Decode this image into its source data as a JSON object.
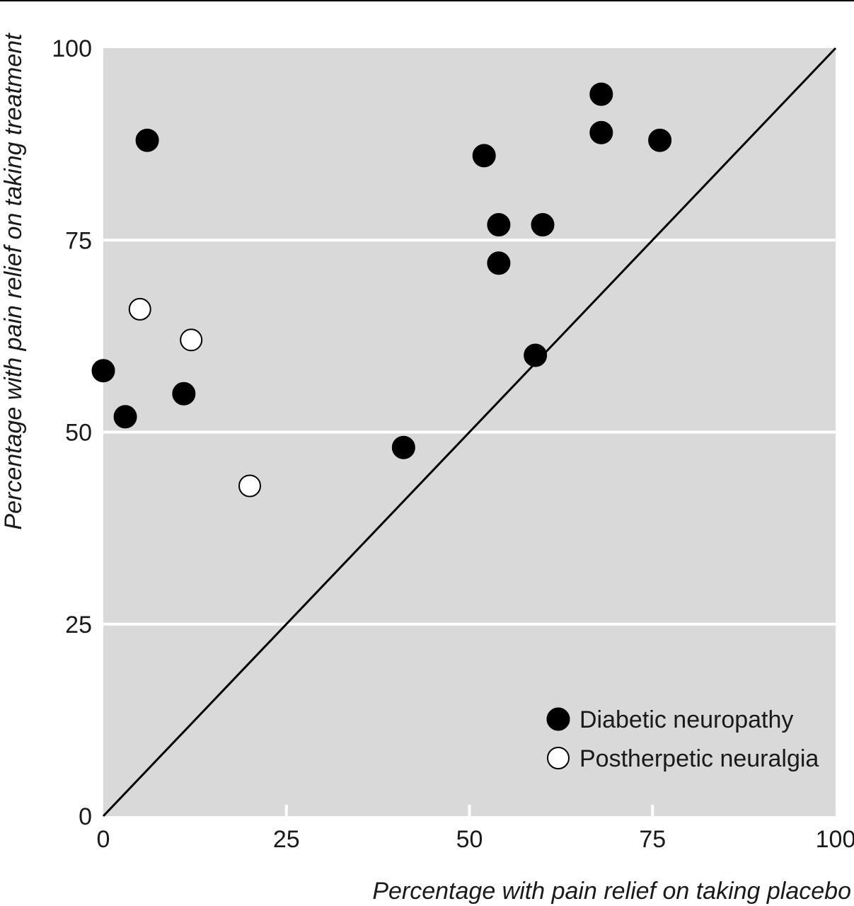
{
  "chart_data": {
    "type": "scatter",
    "title": "",
    "xlabel": "Percentage with pain relief on taking placebo",
    "ylabel": "Percentage with pain relief on taking treatment",
    "xlim": [
      0,
      100
    ],
    "ylim": [
      0,
      100
    ],
    "x_ticks": [
      "0",
      "25",
      "50",
      "75",
      "100"
    ],
    "y_ticks": [
      "0",
      "25",
      "50",
      "75",
      "100"
    ],
    "grid": "horizontal",
    "reference_line": "y = x",
    "legend_position": "bottom-right",
    "series": [
      {
        "name": "Diabetic neuropathy",
        "marker": "filled-circle",
        "color": "#000000",
        "points": [
          {
            "x": 6,
            "y": 88
          },
          {
            "x": 0,
            "y": 58
          },
          {
            "x": 3,
            "y": 52
          },
          {
            "x": 11,
            "y": 55
          },
          {
            "x": 41,
            "y": 48
          },
          {
            "x": 52,
            "y": 86
          },
          {
            "x": 54,
            "y": 77
          },
          {
            "x": 54,
            "y": 72
          },
          {
            "x": 60,
            "y": 77
          },
          {
            "x": 59,
            "y": 60
          },
          {
            "x": 68,
            "y": 94
          },
          {
            "x": 68,
            "y": 89
          },
          {
            "x": 76,
            "y": 88
          }
        ]
      },
      {
        "name": "Postherpetic neuralgia",
        "marker": "open-circle",
        "color": "#ffffff",
        "points": [
          {
            "x": 5,
            "y": 66
          },
          {
            "x": 12,
            "y": 62
          },
          {
            "x": 20,
            "y": 43
          }
        ]
      }
    ]
  },
  "colors": {
    "plot_background": "#d9d9d9",
    "grid": "#ffffff",
    "marker_fill": "#000000",
    "marker_open_fill": "#ffffff",
    "line": "#000000"
  }
}
